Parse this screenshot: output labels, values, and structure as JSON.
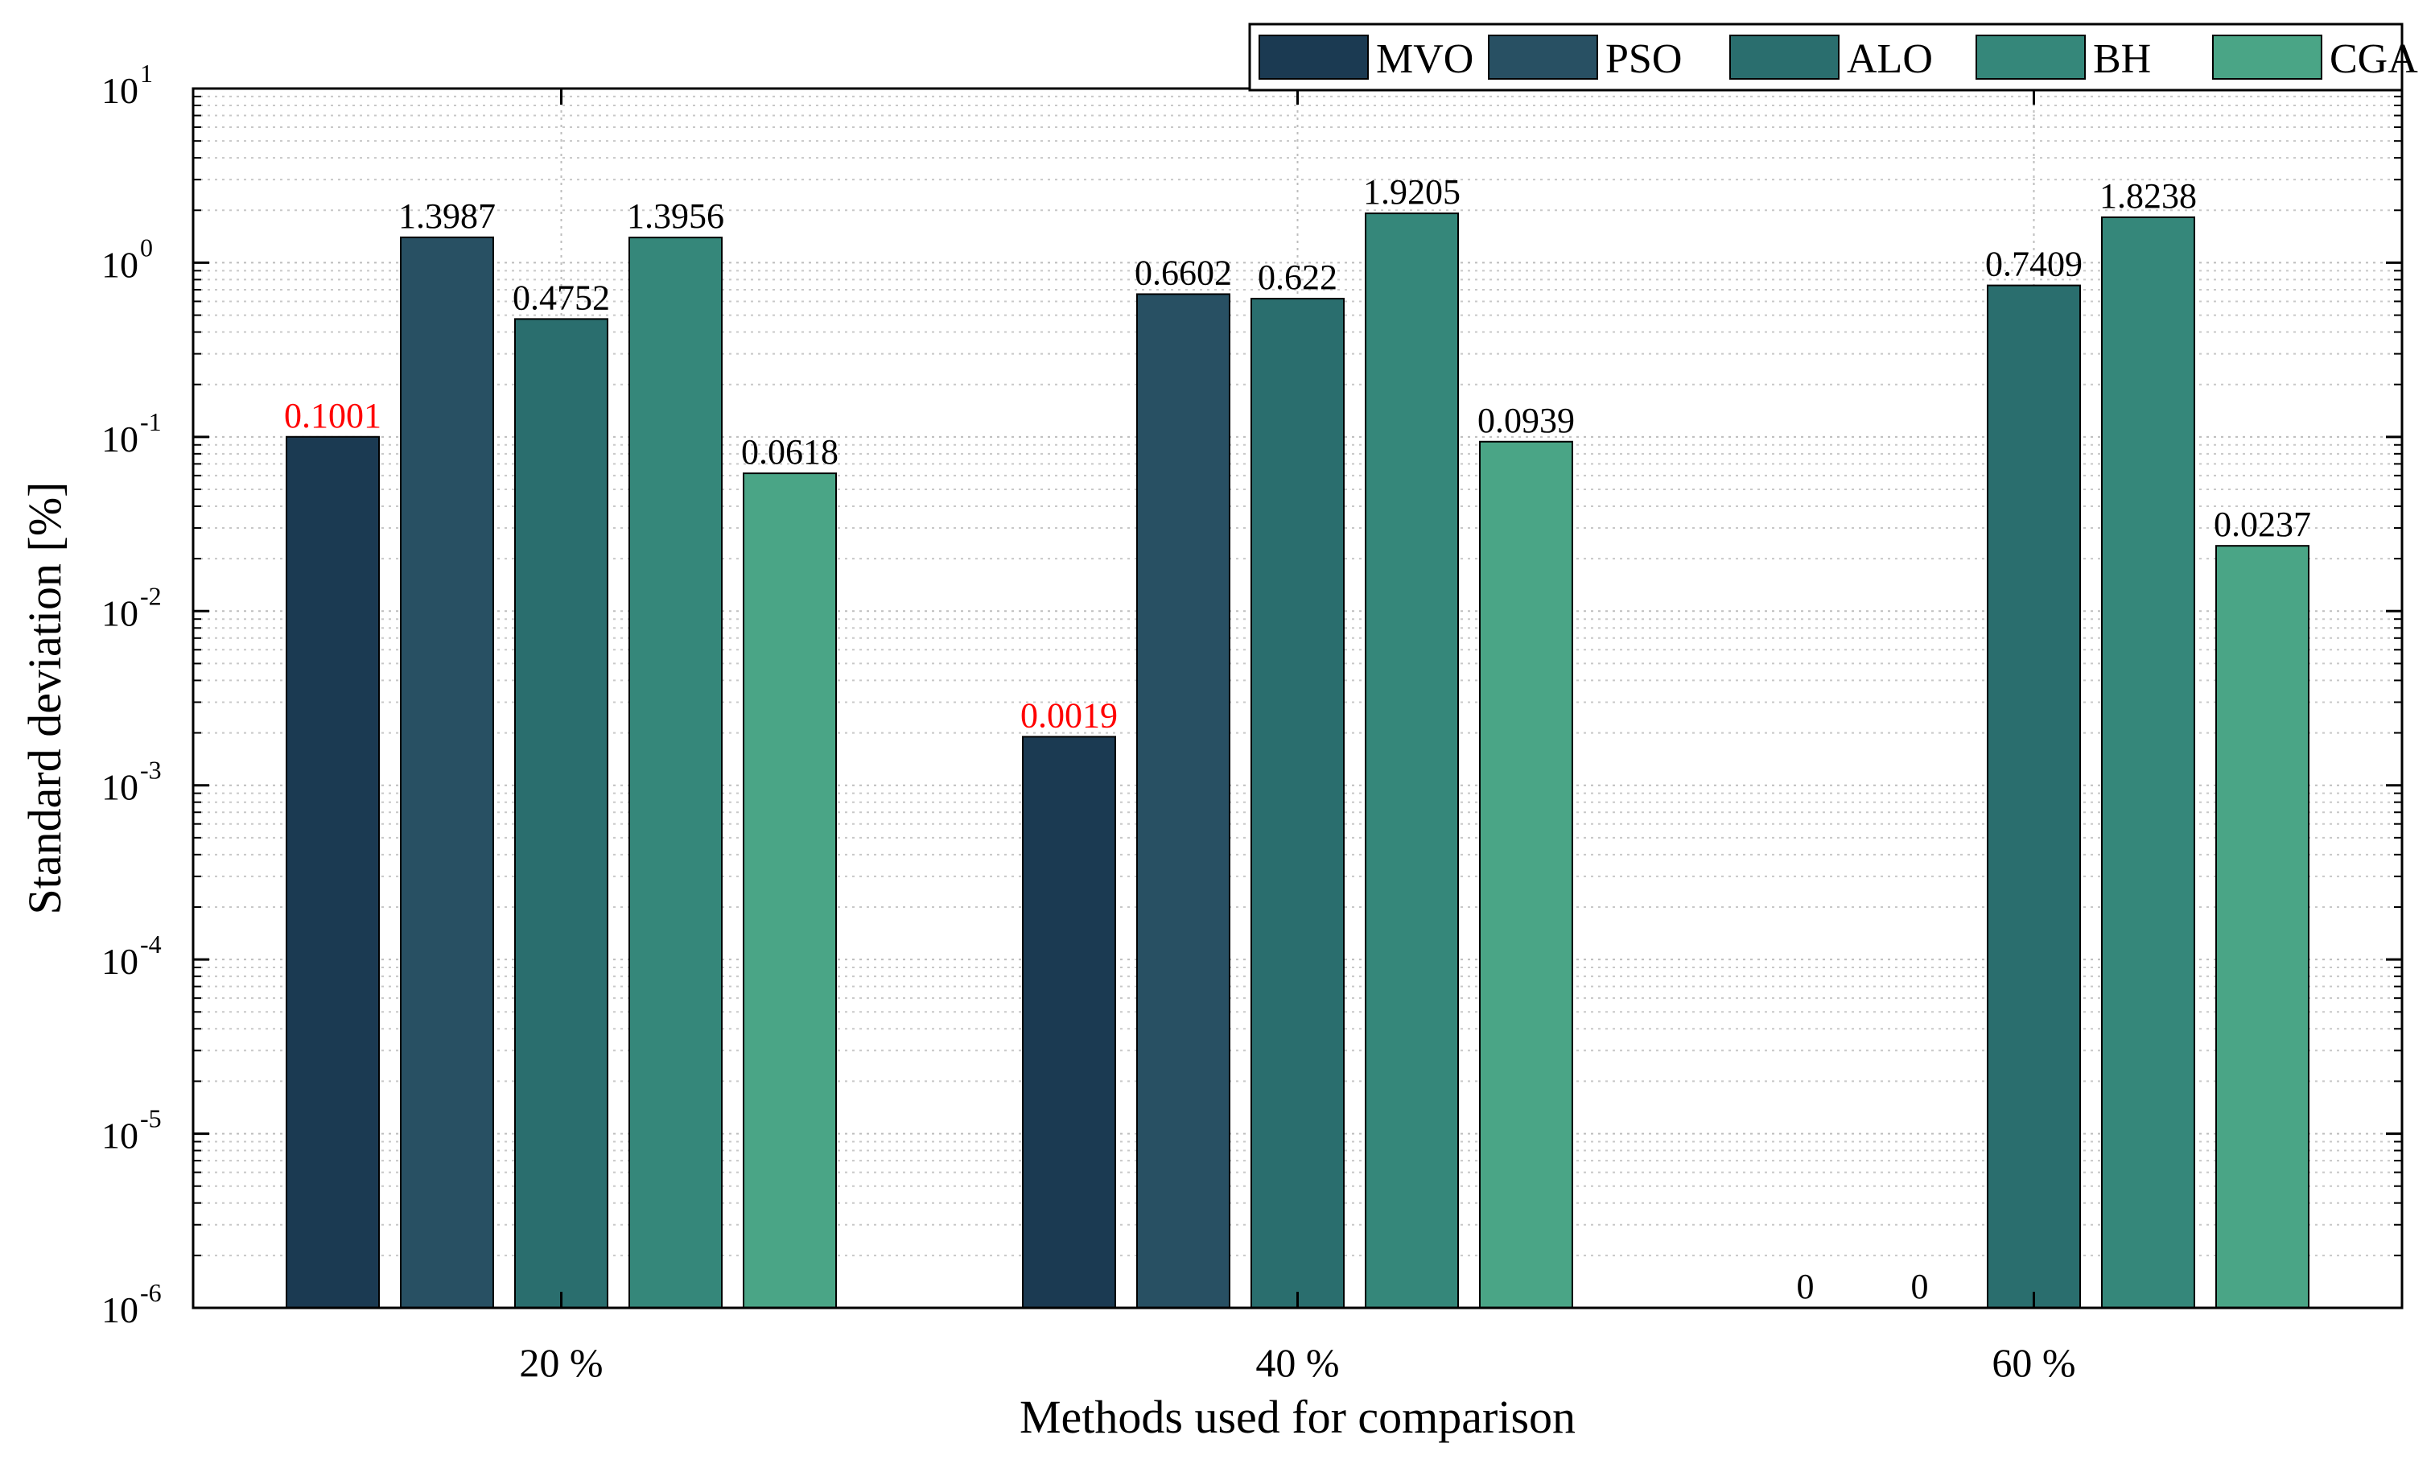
{
  "chart_data": {
    "type": "bar",
    "title": "",
    "xlabel": "Methods used for comparison",
    "ylabel": "Standard deviation [%]",
    "yscale": "log",
    "ylim": [
      1e-06,
      10
    ],
    "y_ticks": [
      {
        "base": "10",
        "exp": "-6"
      },
      {
        "base": "10",
        "exp": "-5"
      },
      {
        "base": "10",
        "exp": "-4"
      },
      {
        "base": "10",
        "exp": "-3"
      },
      {
        "base": "10",
        "exp": "-2"
      },
      {
        "base": "10",
        "exp": "-1"
      },
      {
        "base": "10",
        "exp": "0"
      },
      {
        "base": "10",
        "exp": "1"
      }
    ],
    "grid": true,
    "legend_position": "top-right",
    "categories": [
      "20 %",
      "40 %",
      "60 %"
    ],
    "series": [
      {
        "name": "MVO",
        "color": "#1b3a52",
        "values": [
          0.1001,
          0.0019,
          0
        ],
        "labels": [
          "0.1001",
          "0.0019",
          "0"
        ],
        "label_colors": [
          "#ff0000",
          "#ff0000",
          "#000000"
        ]
      },
      {
        "name": "PSO",
        "color": "#285063",
        "values": [
          1.3987,
          0.6602,
          0
        ],
        "labels": [
          "1.3987",
          "0.6602",
          "0"
        ],
        "label_colors": [
          "#000000",
          "#000000",
          "#000000"
        ]
      },
      {
        "name": "ALO",
        "color": "#2a6e6e",
        "values": [
          0.4752,
          0.622,
          0.7409
        ],
        "labels": [
          "0.4752",
          "0.622",
          "0.7409"
        ],
        "label_colors": [
          "#000000",
          "#000000",
          "#000000"
        ]
      },
      {
        "name": "BH",
        "color": "#35877a",
        "values": [
          1.3956,
          1.9205,
          1.8238
        ],
        "labels": [
          "1.3956",
          "1.9205",
          "1.8238"
        ],
        "label_colors": [
          "#000000",
          "#000000",
          "#000000"
        ]
      },
      {
        "name": "CGA",
        "color": "#4aa586",
        "values": [
          0.0618,
          0.0939,
          0.0237
        ],
        "labels": [
          "0.0618",
          "0.0939",
          "0.0237"
        ],
        "label_colors": [
          "#000000",
          "#000000",
          "#000000"
        ]
      }
    ]
  }
}
